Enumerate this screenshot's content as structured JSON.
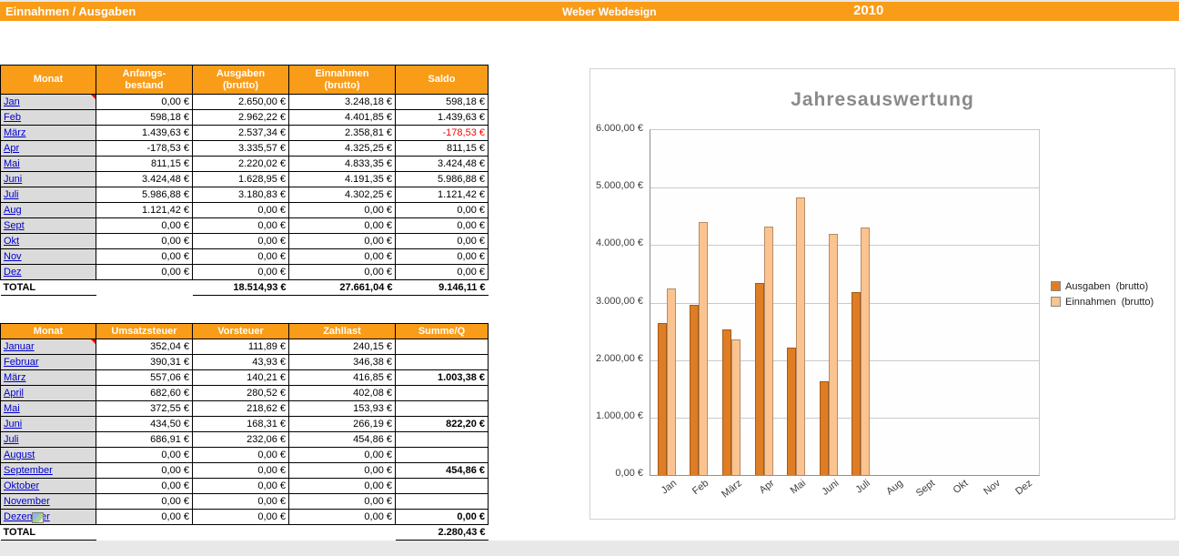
{
  "header": {
    "title": "Einnahmen / Ausgaben",
    "company": "Weber Webdesign",
    "year": "2010"
  },
  "table1": {
    "headers": [
      "Monat",
      "Anfangs-\nbestand",
      "Ausgaben\n(brutto)",
      "Einnahmen\n(brutto)",
      "Saldo"
    ],
    "rows": [
      {
        "monat": "Jan",
        "comment": true,
        "values": [
          "0,00 €",
          "2.650,00 €",
          "3.248,18 €",
          "598,18 €"
        ]
      },
      {
        "monat": "Feb",
        "values": [
          "598,18 €",
          "2.962,22 €",
          "4.401,85 €",
          "1.439,63 €"
        ]
      },
      {
        "monat": "März",
        "values": [
          "1.439,63 €",
          "2.537,34 €",
          "2.358,81 €",
          "-178,53 €"
        ]
      },
      {
        "monat": "Apr",
        "values": [
          "-178,53 €",
          "3.335,57 €",
          "4.325,25 €",
          "811,15 €"
        ]
      },
      {
        "monat": "Mai",
        "values": [
          "811,15 €",
          "2.220,02 €",
          "4.833,35 €",
          "3.424,48 €"
        ]
      },
      {
        "monat": "Juni",
        "values": [
          "3.424,48 €",
          "1.628,95 €",
          "4.191,35 €",
          "5.986,88 €"
        ]
      },
      {
        "monat": "Juli",
        "values": [
          "5.986,88 €",
          "3.180,83 €",
          "4.302,25 €",
          "1.121,42 €"
        ]
      },
      {
        "monat": "Aug",
        "values": [
          "1.121,42 €",
          "0,00 €",
          "0,00 €",
          "0,00 €"
        ]
      },
      {
        "monat": "Sept",
        "values": [
          "0,00 €",
          "0,00 €",
          "0,00 €",
          "0,00 €"
        ]
      },
      {
        "monat": "Okt",
        "values": [
          "0,00 €",
          "0,00 €",
          "0,00 €",
          "0,00 €"
        ]
      },
      {
        "monat": "Nov",
        "values": [
          "0,00 €",
          "0,00 €",
          "0,00 €",
          "0,00 €"
        ]
      },
      {
        "monat": "Dez",
        "values": [
          "0,00 €",
          "0,00 €",
          "0,00 €",
          "0,00 €"
        ]
      }
    ],
    "total": {
      "label": "TOTAL",
      "values": [
        "",
        "18.514,93 €",
        "27.661,04 €",
        "9.146,11 €"
      ]
    }
  },
  "table2": {
    "headers": [
      "Monat",
      "Umsatzsteuer",
      "Vorsteuer",
      "Zahllast",
      "Summe/Q"
    ],
    "rows": [
      {
        "monat": "Januar",
        "comment": true,
        "values": [
          "352,04 €",
          "111,89 €",
          "240,15 €",
          ""
        ]
      },
      {
        "monat": "Februar",
        "values": [
          "390,31 €",
          "43,93 €",
          "346,38 €",
          ""
        ]
      },
      {
        "monat": "März",
        "values": [
          "557,06 €",
          "140,21 €",
          "416,85 €",
          "1.003,38 €"
        ]
      },
      {
        "monat": "April",
        "values": [
          "682,60 €",
          "280,52 €",
          "402,08 €",
          ""
        ]
      },
      {
        "monat": "Mai",
        "values": [
          "372,55 €",
          "218,62 €",
          "153,93 €",
          ""
        ]
      },
      {
        "monat": "Juni",
        "values": [
          "434,50 €",
          "168,31 €",
          "266,19 €",
          "822,20 €"
        ]
      },
      {
        "monat": "Juli",
        "values": [
          "686,91 €",
          "232,06 €",
          "454,86 €",
          ""
        ]
      },
      {
        "monat": "August",
        "values": [
          "0,00 €",
          "0,00 €",
          "0,00 €",
          ""
        ]
      },
      {
        "monat": "September",
        "values": [
          "0,00 €",
          "0,00 €",
          "0,00 €",
          "454,86 €"
        ]
      },
      {
        "monat": "Oktober",
        "values": [
          "0,00 €",
          "0,00 €",
          "0,00 €",
          ""
        ]
      },
      {
        "monat": "November",
        "values": [
          "0,00 €",
          "0,00 €",
          "0,00 €",
          ""
        ]
      },
      {
        "monat": "Dezember",
        "object_icon": true,
        "values": [
          "0,00 €",
          "0,00 €",
          "0,00 €",
          "0,00 €"
        ]
      }
    ],
    "total": {
      "label": "TOTAL",
      "values": [
        "",
        "",
        "",
        "2.280,43 €"
      ]
    }
  },
  "chart_data": {
    "type": "bar",
    "title": "Jahresauswertung",
    "categories": [
      "Jan",
      "Feb",
      "März",
      "Apr",
      "Mai",
      "Juni",
      "Juli",
      "Aug",
      "Sept",
      "Okt",
      "Nov",
      "Dez"
    ],
    "series": [
      {
        "name": "Ausgaben  (brutto)",
        "color": "#DF7D25",
        "values": [
          2650.0,
          2962.22,
          2537.34,
          3335.57,
          2220.02,
          1628.95,
          3180.83,
          0,
          0,
          0,
          0,
          0
        ]
      },
      {
        "name": "Einnahmen  (brutto)",
        "color": "#FBC38F",
        "values": [
          3248.18,
          4401.85,
          2358.81,
          4325.25,
          4833.35,
          4191.35,
          4302.25,
          0,
          0,
          0,
          0,
          0
        ]
      }
    ],
    "y_ticks": [
      "6.000,00 €",
      "5.000,00 €",
      "4.000,00 €",
      "3.000,00 €",
      "2.000,00 €",
      "1.000,00 €",
      "0,00 €"
    ],
    "ylim": [
      0,
      6000
    ],
    "xlabel": "",
    "ylabel": "",
    "grid": true,
    "legend_position": "right"
  },
  "icons": {
    "comment_marker": "red-corner-triangle",
    "embedded_object": "small-picture-icon"
  },
  "colors": {
    "accent_orange": "#F99C17",
    "link_blue": "#0000CC",
    "negative_red": "#FF0000",
    "month_cell_gray": "#DBDBDB",
    "bar_ausgaben": "#DF7D25",
    "bar_einnahmen": "#FBC38F",
    "chart_title_gray": "#8A8A8A"
  }
}
